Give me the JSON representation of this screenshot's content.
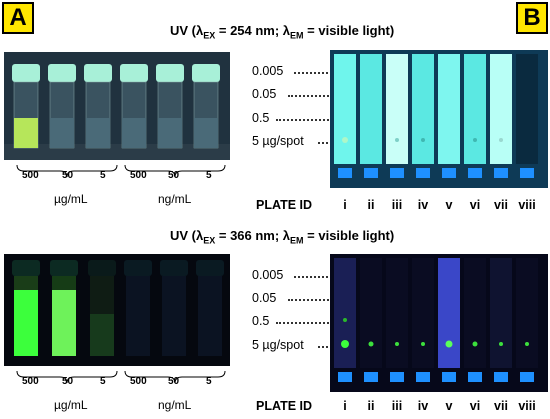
{
  "panels": {
    "a_label": "A",
    "b_label": "B"
  },
  "uv254": {
    "title_prefix": "UV (λ",
    "title_sub1": "EX",
    "title_mid": " = 254 nm; λ",
    "title_sub2": "EM",
    "title_suffix": " = visible light)",
    "concentrations": [
      "0.005",
      "0.05",
      "0.5",
      "5 µg/spot"
    ]
  },
  "uv366": {
    "title_prefix": "UV (λ",
    "title_sub1": "EX",
    "title_mid": " = 366 nm; λ",
    "title_sub2": "EM",
    "title_suffix": " = visible light)",
    "concentrations": [
      "0.005",
      "0.05",
      "0.5",
      "5 µg/spot"
    ]
  },
  "vials": {
    "ug_values": [
      "500",
      "50",
      "5"
    ],
    "ng_values": [
      "500",
      "50",
      "5"
    ],
    "ug_unit": "µg/mL",
    "ng_unit": "ng/mL"
  },
  "plates": {
    "label": "PLATE ID",
    "ids": [
      "i",
      "ii",
      "iii",
      "iv",
      "v",
      "vi",
      "vii",
      "viii"
    ]
  },
  "colors": {
    "badge": "#ffe600",
    "cap": "#a8f0d8",
    "fluor_green": "#3cff3c",
    "plate_cyan": "#5ff0e8",
    "label_blue": "#2a6cff"
  }
}
